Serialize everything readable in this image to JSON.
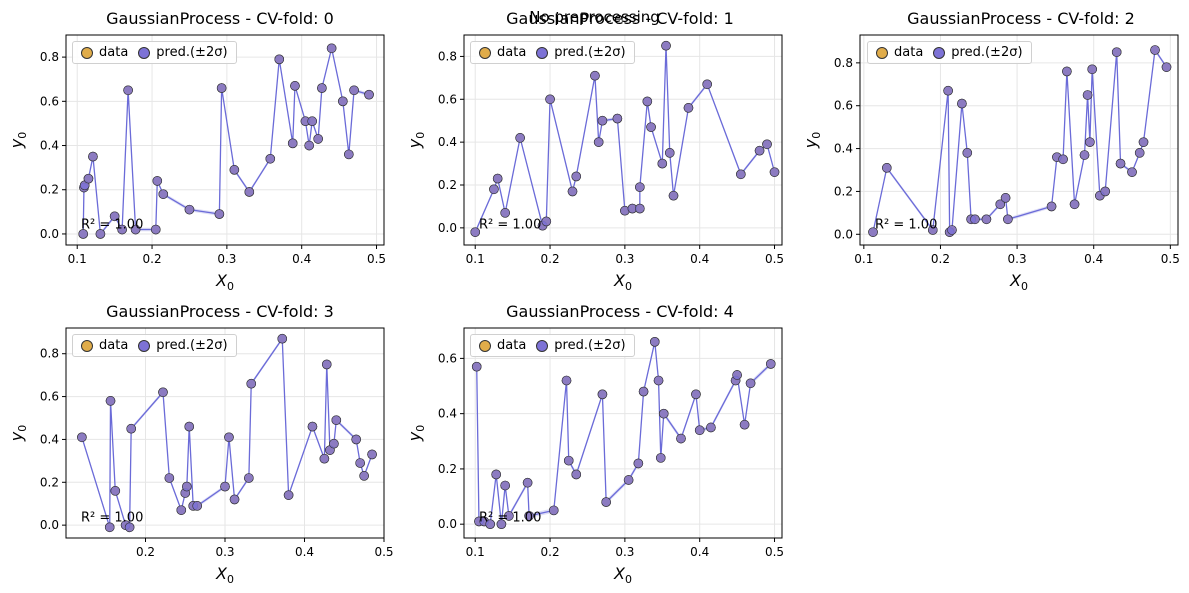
{
  "suptitle": "No preprocessing",
  "legend": {
    "data_label": "data",
    "pred_label": "pred.(±2σ)"
  },
  "colors": {
    "data": "#e0ac4a",
    "pred": "#7d72d6",
    "line": "#6b6bd8",
    "band": "#c8c8f0"
  },
  "chart_data": [
    {
      "type": "line",
      "title": "GaussianProcess - CV-fold: 0",
      "xlabel": "X_0",
      "ylabel": "y_0",
      "xlim": [
        0.085,
        0.51
      ],
      "ylim": [
        -0.05,
        0.9
      ],
      "xticks": [
        0.1,
        0.2,
        0.3,
        0.4,
        0.5
      ],
      "xtick_labels": [
        "0.1",
        "0.2",
        "0.3",
        "0.4",
        "0.5"
      ],
      "yticks": [
        0.0,
        0.2,
        0.4,
        0.6,
        0.8
      ],
      "ytick_labels": [
        "0.0",
        "0.2",
        "0.4",
        "0.6",
        "0.8"
      ],
      "annotation": "R² = 1.00",
      "points": [
        [
          0.108,
          0.0
        ],
        [
          0.109,
          0.21
        ],
        [
          0.11,
          0.22
        ],
        [
          0.115,
          0.25
        ],
        [
          0.121,
          0.35
        ],
        [
          0.131,
          0.0
        ],
        [
          0.15,
          0.08
        ],
        [
          0.16,
          0.02
        ],
        [
          0.168,
          0.65
        ],
        [
          0.178,
          0.02
        ],
        [
          0.205,
          0.02
        ],
        [
          0.207,
          0.24
        ],
        [
          0.215,
          0.18
        ],
        [
          0.25,
          0.11
        ],
        [
          0.29,
          0.09
        ],
        [
          0.293,
          0.66
        ],
        [
          0.31,
          0.29
        ],
        [
          0.33,
          0.19
        ],
        [
          0.358,
          0.34
        ],
        [
          0.37,
          0.79
        ],
        [
          0.388,
          0.41
        ],
        [
          0.391,
          0.67
        ],
        [
          0.405,
          0.51
        ],
        [
          0.41,
          0.4
        ],
        [
          0.414,
          0.51
        ],
        [
          0.422,
          0.43
        ],
        [
          0.427,
          0.66
        ],
        [
          0.44,
          0.84
        ],
        [
          0.455,
          0.6
        ],
        [
          0.463,
          0.36
        ],
        [
          0.47,
          0.65
        ],
        [
          0.49,
          0.63
        ]
      ]
    },
    {
      "type": "line",
      "title": "GaussianProcess - CV-fold: 1",
      "xlabel": "X_0",
      "ylabel": "y_0",
      "xlim": [
        0.085,
        0.51
      ],
      "ylim": [
        -0.08,
        0.9
      ],
      "xticks": [
        0.1,
        0.2,
        0.3,
        0.4,
        0.5
      ],
      "xtick_labels": [
        "0.1",
        "0.2",
        "0.3",
        "0.4",
        "0.5"
      ],
      "yticks": [
        0.0,
        0.2,
        0.4,
        0.6,
        0.8
      ],
      "ytick_labels": [
        "0.0",
        "0.2",
        "0.4",
        "0.6",
        "0.8"
      ],
      "annotation": "R² = 1.00",
      "points": [
        [
          0.1,
          -0.02
        ],
        [
          0.125,
          0.18
        ],
        [
          0.13,
          0.23
        ],
        [
          0.14,
          0.07
        ],
        [
          0.16,
          0.42
        ],
        [
          0.19,
          0.01
        ],
        [
          0.195,
          0.03
        ],
        [
          0.2,
          0.6
        ],
        [
          0.23,
          0.17
        ],
        [
          0.235,
          0.24
        ],
        [
          0.26,
          0.71
        ],
        [
          0.265,
          0.4
        ],
        [
          0.27,
          0.5
        ],
        [
          0.29,
          0.51
        ],
        [
          0.3,
          0.08
        ],
        [
          0.31,
          0.09
        ],
        [
          0.32,
          0.09
        ],
        [
          0.32,
          0.19
        ],
        [
          0.33,
          0.59
        ],
        [
          0.335,
          0.47
        ],
        [
          0.35,
          0.3
        ],
        [
          0.355,
          0.85
        ],
        [
          0.36,
          0.35
        ],
        [
          0.365,
          0.15
        ],
        [
          0.385,
          0.56
        ],
        [
          0.41,
          0.67
        ],
        [
          0.455,
          0.25
        ],
        [
          0.48,
          0.36
        ],
        [
          0.49,
          0.39
        ],
        [
          0.5,
          0.26
        ]
      ]
    },
    {
      "type": "line",
      "title": "GaussianProcess - CV-fold: 2",
      "xlabel": "X_0",
      "ylabel": "y_0",
      "xlim": [
        0.095,
        0.51
      ],
      "ylim": [
        -0.05,
        0.93
      ],
      "xticks": [
        0.1,
        0.2,
        0.3,
        0.4,
        0.5
      ],
      "xtick_labels": [
        "0.1",
        "0.2",
        "0.3",
        "0.4",
        "0.5"
      ],
      "yticks": [
        0.0,
        0.2,
        0.4,
        0.6,
        0.8
      ],
      "ytick_labels": [
        "0.0",
        "0.2",
        "0.4",
        "0.6",
        "0.8"
      ],
      "annotation": "R² = 1.00",
      "points": [
        [
          0.112,
          0.01
        ],
        [
          0.13,
          0.31
        ],
        [
          0.19,
          0.02
        ],
        [
          0.21,
          0.67
        ],
        [
          0.212,
          0.01
        ],
        [
          0.215,
          0.02
        ],
        [
          0.228,
          0.61
        ],
        [
          0.235,
          0.38
        ],
        [
          0.24,
          0.07
        ],
        [
          0.245,
          0.07
        ],
        [
          0.26,
          0.07
        ],
        [
          0.278,
          0.14
        ],
        [
          0.285,
          0.17
        ],
        [
          0.288,
          0.07
        ],
        [
          0.345,
          0.13
        ],
        [
          0.352,
          0.36
        ],
        [
          0.36,
          0.35
        ],
        [
          0.365,
          0.76
        ],
        [
          0.375,
          0.14
        ],
        [
          0.388,
          0.37
        ],
        [
          0.392,
          0.65
        ],
        [
          0.395,
          0.43
        ],
        [
          0.398,
          0.77
        ],
        [
          0.408,
          0.18
        ],
        [
          0.415,
          0.2
        ],
        [
          0.43,
          0.85
        ],
        [
          0.435,
          0.33
        ],
        [
          0.45,
          0.29
        ],
        [
          0.46,
          0.38
        ],
        [
          0.465,
          0.43
        ],
        [
          0.48,
          0.86
        ],
        [
          0.495,
          0.78
        ]
      ]
    },
    {
      "type": "line",
      "title": "GaussianProcess - CV-fold: 3",
      "xlabel": "X_0",
      "ylabel": "y_0",
      "xlim": [
        0.1,
        0.5
      ],
      "ylim": [
        -0.06,
        0.92
      ],
      "xticks": [
        0.2,
        0.3,
        0.4,
        0.5
      ],
      "xtick_labels": [
        "0.2",
        "0.3",
        "0.4",
        "0.5"
      ],
      "yticks": [
        0.0,
        0.2,
        0.4,
        0.6,
        0.8
      ],
      "ytick_labels": [
        "0.0",
        "0.2",
        "0.4",
        "0.6",
        "0.8"
      ],
      "annotation": "R² = 1.00",
      "points": [
        [
          0.12,
          0.41
        ],
        [
          0.155,
          -0.01
        ],
        [
          0.156,
          0.58
        ],
        [
          0.162,
          0.16
        ],
        [
          0.175,
          0.0
        ],
        [
          0.18,
          -0.01
        ],
        [
          0.182,
          0.45
        ],
        [
          0.222,
          0.62
        ],
        [
          0.23,
          0.22
        ],
        [
          0.245,
          0.07
        ],
        [
          0.25,
          0.15
        ],
        [
          0.252,
          0.18
        ],
        [
          0.255,
          0.46
        ],
        [
          0.26,
          0.09
        ],
        [
          0.265,
          0.09
        ],
        [
          0.3,
          0.18
        ],
        [
          0.305,
          0.41
        ],
        [
          0.312,
          0.12
        ],
        [
          0.33,
          0.22
        ],
        [
          0.333,
          0.66
        ],
        [
          0.372,
          0.87
        ],
        [
          0.38,
          0.14
        ],
        [
          0.41,
          0.46
        ],
        [
          0.425,
          0.31
        ],
        [
          0.428,
          0.75
        ],
        [
          0.432,
          0.35
        ],
        [
          0.437,
          0.38
        ],
        [
          0.44,
          0.49
        ],
        [
          0.465,
          0.4
        ],
        [
          0.47,
          0.29
        ],
        [
          0.475,
          0.23
        ],
        [
          0.485,
          0.33
        ]
      ]
    },
    {
      "type": "line",
      "title": "GaussianProcess - CV-fold: 4",
      "xlabel": "X_0",
      "ylabel": "y_0",
      "xlim": [
        0.085,
        0.51
      ],
      "ylim": [
        -0.05,
        0.71
      ],
      "xticks": [
        0.1,
        0.2,
        0.3,
        0.4,
        0.5
      ],
      "xtick_labels": [
        "0.1",
        "0.2",
        "0.3",
        "0.4",
        "0.5"
      ],
      "yticks": [
        0.0,
        0.2,
        0.4,
        0.6
      ],
      "ytick_labels": [
        "0.0",
        "0.2",
        "0.4",
        "0.6"
      ],
      "annotation": "R² = 1.00",
      "points": [
        [
          0.102,
          0.57
        ],
        [
          0.105,
          0.01
        ],
        [
          0.112,
          0.01
        ],
        [
          0.12,
          0.0
        ],
        [
          0.128,
          0.18
        ],
        [
          0.135,
          0.0
        ],
        [
          0.14,
          0.14
        ],
        [
          0.145,
          0.03
        ],
        [
          0.17,
          0.15
        ],
        [
          0.172,
          0.03
        ],
        [
          0.205,
          0.05
        ],
        [
          0.222,
          0.52
        ],
        [
          0.225,
          0.23
        ],
        [
          0.235,
          0.18
        ],
        [
          0.27,
          0.47
        ],
        [
          0.275,
          0.08
        ],
        [
          0.305,
          0.16
        ],
        [
          0.318,
          0.22
        ],
        [
          0.325,
          0.48
        ],
        [
          0.34,
          0.66
        ],
        [
          0.345,
          0.52
        ],
        [
          0.348,
          0.24
        ],
        [
          0.352,
          0.4
        ],
        [
          0.375,
          0.31
        ],
        [
          0.395,
          0.47
        ],
        [
          0.4,
          0.34
        ],
        [
          0.415,
          0.35
        ],
        [
          0.448,
          0.52
        ],
        [
          0.45,
          0.54
        ],
        [
          0.46,
          0.36
        ],
        [
          0.468,
          0.51
        ],
        [
          0.495,
          0.58
        ]
      ]
    }
  ]
}
